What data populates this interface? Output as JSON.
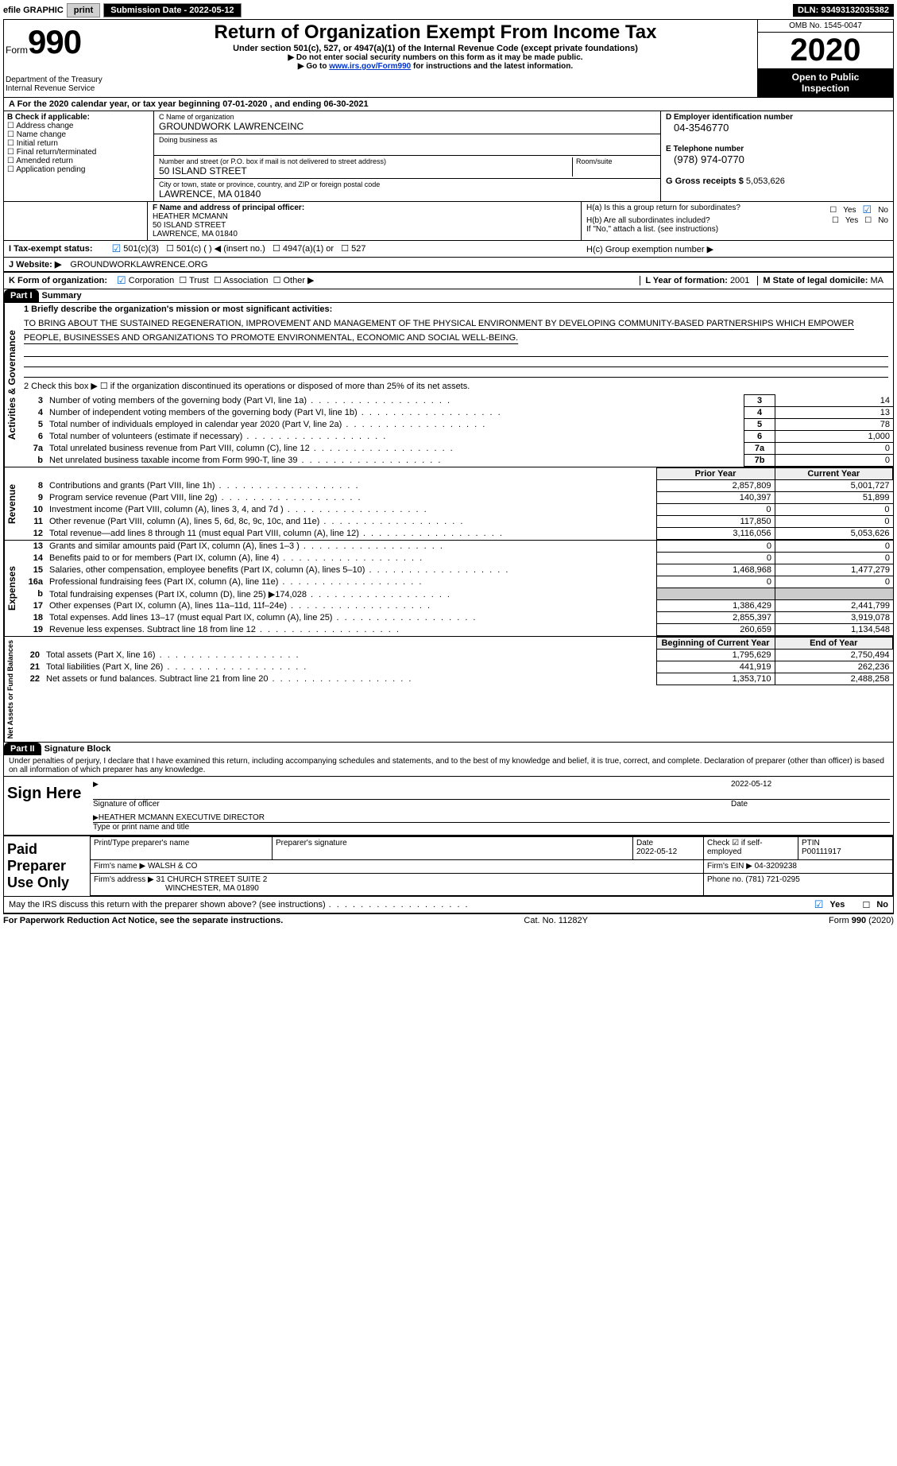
{
  "top": {
    "efile_label": "efile GRAPHIC",
    "print": "print",
    "sub_date_label": "Submission Date - ",
    "sub_date": "2022-05-12",
    "dln_label": "DLN: ",
    "dln": "93493132035382"
  },
  "header": {
    "form_word": "Form",
    "form_num": "990",
    "dept1": "Department of the Treasury",
    "dept2": "Internal Revenue Service",
    "title": "Return of Organization Exempt From Income Tax",
    "sub": "Under section 501(c), 527, or 4947(a)(1) of the Internal Revenue Code (except private foundations)",
    "ssn": "▶ Do not enter social security numbers on this form as it may be made public.",
    "goto_pre": "▶ Go to ",
    "goto_link": "www.irs.gov/Form990",
    "goto_post": " for instructions and the latest information.",
    "omb": "OMB No. 1545-0047",
    "year": "2020",
    "open1": "Open to Public",
    "open2": "Inspection"
  },
  "period": {
    "a_pre": "A For the 2020 calendar year, or tax year beginning ",
    "begin": "07-01-2020",
    "mid": "    , and ending ",
    "end": "06-30-2021"
  },
  "boxB": {
    "label": "B Check if applicable:",
    "items": [
      "Address change",
      "Name change",
      "Initial return",
      "Final return/terminated",
      "Amended return",
      "Application pending"
    ]
  },
  "boxC": {
    "name_label": "C Name of organization",
    "name": "GROUNDWORK LAWRENCEINC",
    "dba_label": "Doing business as",
    "street_label": "Number and street (or P.O. box if mail is not delivered to street address)",
    "room_label": "Room/suite",
    "street": "50 ISLAND STREET",
    "city_label": "City or town, state or province, country, and ZIP or foreign postal code",
    "city": "LAWRENCE, MA  01840"
  },
  "boxD": {
    "label": "D Employer identification number",
    "val": "04-3546770"
  },
  "boxE": {
    "label": "E Telephone number",
    "val": "(978) 974-0770"
  },
  "boxG": {
    "label": "G Gross receipts $ ",
    "val": "5,053,626"
  },
  "boxF": {
    "label": "F  Name and address of principal officer:",
    "name": "HEATHER MCMANN",
    "street": "50 ISLAND STREET",
    "city": "LAWRENCE, MA  01840"
  },
  "boxH": {
    "a": "H(a)  Is this a group return for subordinates?",
    "b": "H(b)  Are all subordinates included?",
    "ifno": "If \"No,\" attach a list. (see instructions)",
    "c": "H(c)  Group exemption number ▶"
  },
  "boxI": {
    "label": "I  Tax-exempt status:",
    "opts": [
      "501(c)(3)",
      "501(c) (   ) ◀ (insert no.)",
      "4947(a)(1) or",
      "527"
    ]
  },
  "boxJ": {
    "label": "J  Website: ▶",
    "val": "GROUNDWORKLAWRENCE.ORG"
  },
  "boxK": {
    "label": "K Form of organization:",
    "opts": [
      "Corporation",
      "Trust",
      "Association",
      "Other ▶"
    ]
  },
  "boxL": {
    "label": "L Year of formation: ",
    "val": "2001"
  },
  "boxM": {
    "label": "M State of legal domicile: ",
    "val": "MA"
  },
  "part1": {
    "hdr": "Part I",
    "title": "Summary",
    "l1": "1  Briefly describe the organization's mission or most significant activities:",
    "mission": "TO BRING ABOUT THE SUSTAINED REGENERATION, IMPROVEMENT AND MANAGEMENT OF THE PHYSICAL ENVIRONMENT BY DEVELOPING COMMUNITY-BASED PARTNERSHIPS WHICH EMPOWER PEOPLE, BUSINESSES AND ORGANIZATIONS TO PROMOTE ENVIRONMENTAL, ECONOMIC AND SOCIAL WELL-BEING.",
    "l2": "2  Check this box ▶ ☐ if the organization discontinued its operations or disposed of more than 25% of its net assets."
  },
  "sideLabels": {
    "gov": "Activities & Governance",
    "rev": "Revenue",
    "exp": "Expenses",
    "net": "Net Assets or Fund Balances"
  },
  "govRows": [
    {
      "n": "3",
      "d": "Number of voting members of the governing body (Part VI, line 1a)",
      "b": "3",
      "v": "14"
    },
    {
      "n": "4",
      "d": "Number of independent voting members of the governing body (Part VI, line 1b)",
      "b": "4",
      "v": "13"
    },
    {
      "n": "5",
      "d": "Total number of individuals employed in calendar year 2020 (Part V, line 2a)",
      "b": "5",
      "v": "78"
    },
    {
      "n": "6",
      "d": "Total number of volunteers (estimate if necessary)",
      "b": "6",
      "v": "1,000"
    },
    {
      "n": "7a",
      "d": "Total unrelated business revenue from Part VIII, column (C), line 12",
      "b": "7a",
      "v": "0"
    },
    {
      "n": "b",
      "d": "Net unrelated business taxable income from Form 990-T, line 39",
      "b": "7b",
      "v": "0"
    }
  ],
  "yrHdr": {
    "prior": "Prior Year",
    "curr": "Current Year"
  },
  "revRows": [
    {
      "n": "8",
      "d": "Contributions and grants (Part VIII, line 1h)",
      "p": "2,857,809",
      "c": "5,001,727"
    },
    {
      "n": "9",
      "d": "Program service revenue (Part VIII, line 2g)",
      "p": "140,397",
      "c": "51,899"
    },
    {
      "n": "10",
      "d": "Investment income (Part VIII, column (A), lines 3, 4, and 7d )",
      "p": "0",
      "c": "0"
    },
    {
      "n": "11",
      "d": "Other revenue (Part VIII, column (A), lines 5, 6d, 8c, 9c, 10c, and 11e)",
      "p": "117,850",
      "c": "0"
    },
    {
      "n": "12",
      "d": "Total revenue—add lines 8 through 11 (must equal Part VIII, column (A), line 12)",
      "p": "3,116,056",
      "c": "5,053,626"
    }
  ],
  "expRows": [
    {
      "n": "13",
      "d": "Grants and similar amounts paid (Part IX, column (A), lines 1–3 )",
      "p": "0",
      "c": "0"
    },
    {
      "n": "14",
      "d": "Benefits paid to or for members (Part IX, column (A), line 4)",
      "p": "0",
      "c": "0"
    },
    {
      "n": "15",
      "d": "Salaries, other compensation, employee benefits (Part IX, column (A), lines 5–10)",
      "p": "1,468,968",
      "c": "1,477,279"
    },
    {
      "n": "16a",
      "d": "Professional fundraising fees (Part IX, column (A), line 11e)",
      "p": "0",
      "c": "0"
    },
    {
      "n": "b",
      "d": "Total fundraising expenses (Part IX, column (D), line 25) ▶174,028",
      "p": "",
      "c": "",
      "shade": true
    },
    {
      "n": "17",
      "d": "Other expenses (Part IX, column (A), lines 11a–11d, 11f–24e)",
      "p": "1,386,429",
      "c": "2,441,799"
    },
    {
      "n": "18",
      "d": "Total expenses. Add lines 13–17 (must equal Part IX, column (A), line 25)",
      "p": "2,855,397",
      "c": "3,919,078"
    },
    {
      "n": "19",
      "d": "Revenue less expenses. Subtract line 18 from line 12",
      "p": "260,659",
      "c": "1,134,548"
    }
  ],
  "netHdr": {
    "b": "Beginning of Current Year",
    "e": "End of Year"
  },
  "netRows": [
    {
      "n": "20",
      "d": "Total assets (Part X, line 16)",
      "p": "1,795,629",
      "c": "2,750,494"
    },
    {
      "n": "21",
      "d": "Total liabilities (Part X, line 26)",
      "p": "441,919",
      "c": "262,236"
    },
    {
      "n": "22",
      "d": "Net assets or fund balances. Subtract line 21 from line 20",
      "p": "1,353,710",
      "c": "2,488,258"
    }
  ],
  "part2": {
    "hdr": "Part II",
    "title": "Signature Block"
  },
  "penalty": "Under penalties of perjury, I declare that I have examined this return, including accompanying schedules and statements, and to the best of my knowledge and belief, it is true, correct, and complete. Declaration of preparer (other than officer) is based on all information of which preparer has any knowledge.",
  "sign": {
    "here": "Sign Here",
    "sig_officer": "Signature of officer",
    "date": "Date",
    "sig_date": "2022-05-12",
    "name": "HEATHER MCMANN  EXECUTIVE DIRECTOR",
    "type": "Type or print name and title"
  },
  "prep": {
    "label": "Paid Preparer Use Only",
    "h_name": "Print/Type preparer's name",
    "h_sig": "Preparer's signature",
    "h_date": "Date",
    "h_chk": "Check ☑ if self-employed",
    "h_ptin": "PTIN",
    "date": "2022-05-12",
    "ptin": "P00111917",
    "firm_l": "Firm's name    ▶",
    "firm": "WALSH & CO",
    "ein_l": "Firm's EIN ▶ ",
    "ein": "04-3209238",
    "addr_l": "Firm's address ▶",
    "addr1": "31 CHURCH STREET SUITE 2",
    "addr2": "WINCHESTER, MA  01890",
    "phone_l": "Phone no. ",
    "phone": "(781) 721-0295"
  },
  "discuss": "May the IRS discuss this return with the preparer shown above? (see instructions)",
  "footer": {
    "pra": "For Paperwork Reduction Act Notice, see the separate instructions.",
    "cat": "Cat. No. 11282Y",
    "form": "Form 990 (2020)"
  },
  "yesno": {
    "yes": "Yes",
    "no": "No"
  }
}
